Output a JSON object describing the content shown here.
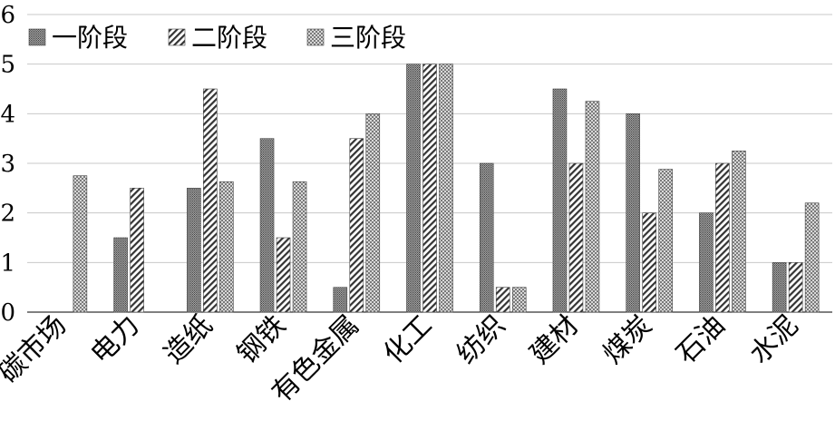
{
  "chart_data": {
    "type": "bar",
    "categories": [
      "碳市场",
      "电力",
      "造纸",
      "钢铁",
      "有色金属",
      "化工",
      "纺织",
      "建材",
      "煤炭",
      "石油",
      "水泥"
    ],
    "series": [
      {
        "name": "一阶段",
        "values": [
          0,
          1.5,
          2.5,
          3.5,
          0.5,
          5,
          3,
          4.5,
          4,
          2,
          1
        ]
      },
      {
        "name": "二阶段",
        "values": [
          0,
          2.5,
          4.5,
          1.5,
          3.5,
          5,
          0.5,
          3,
          2,
          3,
          1
        ]
      },
      {
        "name": "三阶段",
        "values": [
          2.75,
          0,
          2.63,
          2.63,
          4,
          5,
          0.5,
          4.25,
          2.88,
          3.25,
          2.2
        ]
      }
    ],
    "ylim": [
      0,
      6
    ],
    "yticks": [
      "0",
      "1",
      "2",
      "3",
      "4",
      "5",
      "6"
    ],
    "grid": "horizontal",
    "legend": "top-left",
    "colors": {
      "stroke": "#000000",
      "background": "#ffffff"
    },
    "patterns": [
      "dense-dots",
      "diagonal-stripes",
      "checker-dots"
    ]
  }
}
